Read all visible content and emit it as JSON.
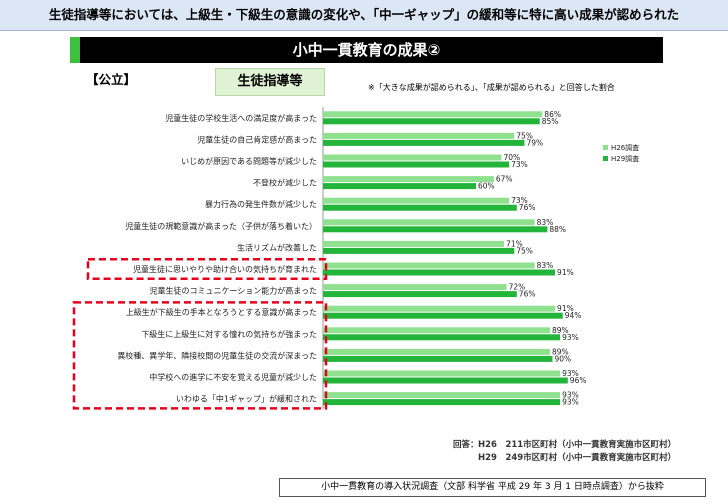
{
  "headline": "生徒指導等においては、上級生・下級生の意識の変化や、「中一ギャップ」の緩和等に特に高い成果が認められた",
  "title": "小中一貫教育の成果②",
  "public_tag": "【公立】",
  "category": "生徒指導等",
  "note": "※「大きな成果が認められる」、「成果が認められる」と回答した割合",
  "source": {
    "prefix": "回答：",
    "h26": "H26　211市区町村（小中一貫教育実施市区町村）",
    "h29": "H29　249市区町村（小中一貫教育実施市区町村）"
  },
  "footer": "小中一貫教育の導入状況調査（文部 科学省 平成 29 年 3 月 1 日時点調査）から抜粋",
  "colors": {
    "h26": "#8fe08f",
    "h29": "#22b53a",
    "highlight": "#e8001c",
    "title_accent": "#3cc13c"
  },
  "chart_data": {
    "type": "bar",
    "orientation": "horizontal",
    "xlim": [
      0,
      100
    ],
    "value_suffix": "%",
    "legend_position": "right",
    "categories": [
      "児童生徒の学校生活への満足度が高まった",
      "児童生徒の自己肯定感が高まった",
      "いじめが原因である問題等が減少した",
      "不登校が減少した",
      "暴力行為の発生件数が減少した",
      "児童生徒の規範意識が高まった（子供が落ち着いた）",
      "生活リズムが改善した",
      "児童生徒に思いやりや助け合いの気持ちが育まれた",
      "児童生徒のコミュニケーション能力が高まった",
      "上級生が下級生の手本となろうとする意識が高まった",
      "下級生に上級生に対する憧れの気持ちが強まった",
      "異校種、異学年、隣接校間の児童生徒の交流が深まった",
      "中学校への進学に不安を覚える児童が減少した",
      "いわゆる「中1ギャップ」が緩和された"
    ],
    "series": [
      {
        "name": "H26調査",
        "values": [
          86,
          75,
          70,
          67,
          73,
          83,
          71,
          83,
          72,
          91,
          89,
          89,
          93,
          93
        ]
      },
      {
        "name": "H29調査",
        "values": [
          85,
          79,
          73,
          60,
          76,
          88,
          75,
          91,
          76,
          94,
          93,
          90,
          96,
          93
        ]
      }
    ],
    "highlighted": [
      7,
      9,
      10,
      11,
      12,
      13
    ]
  }
}
